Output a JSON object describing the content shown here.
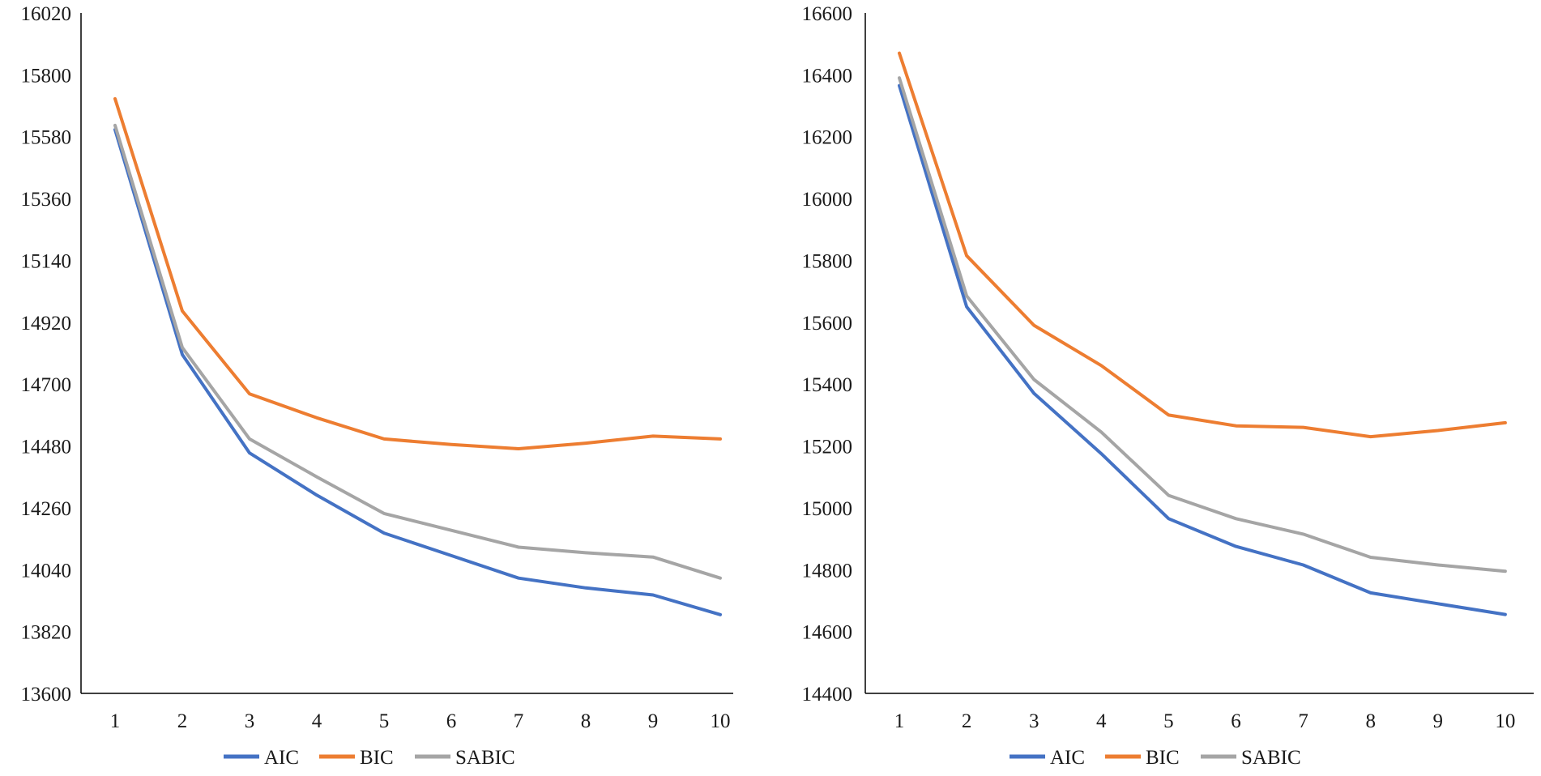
{
  "chart_data": [
    {
      "type": "line",
      "title": "",
      "xlabel": "",
      "ylabel": "",
      "grid": false,
      "legend": "bottom-center",
      "categories": [
        "1",
        "2",
        "3",
        "4",
        "5",
        "6",
        "7",
        "8",
        "9",
        "10"
      ],
      "ylim": [
        13600,
        16020
      ],
      "yticks": [
        "13600",
        "13820",
        "14040",
        "14260",
        "14480",
        "14700",
        "14920",
        "15140",
        "15360",
        "15580",
        "15800",
        "16020"
      ],
      "series": [
        {
          "name": "AIC",
          "color": "#4472C4",
          "values": [
            15605,
            14805,
            14455,
            14305,
            14170,
            14090,
            14010,
            13975,
            13950,
            13880
          ]
        },
        {
          "name": "BIC",
          "color": "#ED7D31",
          "values": [
            15715,
            14960,
            14665,
            14580,
            14505,
            14485,
            14470,
            14490,
            14515,
            14505
          ]
        },
        {
          "name": "SABIC",
          "color": "#A5A5A5",
          "values": [
            15620,
            14830,
            14505,
            14370,
            14240,
            14180,
            14120,
            14100,
            14085,
            14010
          ]
        }
      ]
    },
    {
      "type": "line",
      "title": "",
      "xlabel": "",
      "ylabel": "",
      "grid": false,
      "legend": "bottom-center",
      "categories": [
        "1",
        "2",
        "3",
        "4",
        "5",
        "6",
        "7",
        "8",
        "9",
        "10"
      ],
      "ylim": [
        14400,
        16600
      ],
      "yticks": [
        "14400",
        "14600",
        "14800",
        "15000",
        "15200",
        "15400",
        "15600",
        "15800",
        "16000",
        "16200",
        "16400",
        "16600"
      ],
      "series": [
        {
          "name": "AIC",
          "color": "#4472C4",
          "values": [
            16365,
            15650,
            15370,
            15175,
            14965,
            14875,
            14815,
            14725,
            14690,
            14655
          ]
        },
        {
          "name": "BIC",
          "color": "#ED7D31",
          "values": [
            16470,
            15815,
            15590,
            15460,
            15300,
            15265,
            15260,
            15230,
            15250,
            15275
          ]
        },
        {
          "name": "SABIC",
          "color": "#A5A5A5",
          "values": [
            16390,
            15685,
            15415,
            15245,
            15040,
            14965,
            14915,
            14840,
            14815,
            14795
          ]
        }
      ]
    }
  ]
}
